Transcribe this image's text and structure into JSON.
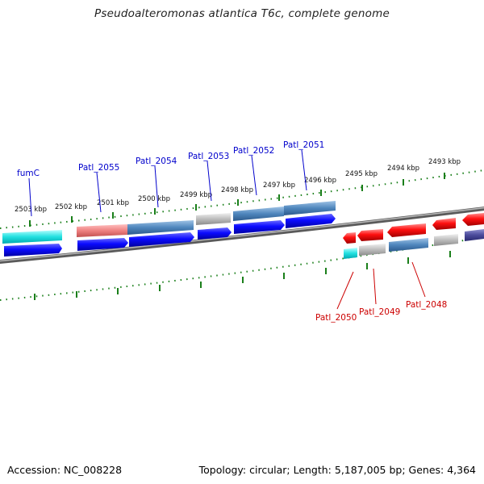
{
  "title": "Pseudoalteromonas atlantica T6c, complete genome",
  "footer": {
    "accession": "Accession: NC_008228",
    "summary": "Topology: circular; Length: 5,187,005 bp; Genes: 4,364"
  },
  "ruler_labels": [
    "2503 kbp",
    "2502 kbp",
    "2501 kbp",
    "2500 kbp",
    "2499 kbp",
    "2498 kbp",
    "2497 kbp",
    "2496 kbp",
    "2495 kbp",
    "2494 kbp",
    "2493 kbp"
  ],
  "gene_labels_upper": [
    "fumC",
    "Patl_2055",
    "Patl_2054",
    "Patl_2053",
    "Patl_2052",
    "Patl_2051"
  ],
  "gene_labels_lower": [
    "Patl_2050",
    "Patl_2049",
    "Patl_2048"
  ],
  "colors": {
    "label_upper": "#0000cc",
    "label_lower": "#cc0000",
    "tick": "#1a7f1a",
    "backbone": "#808080"
  }
}
